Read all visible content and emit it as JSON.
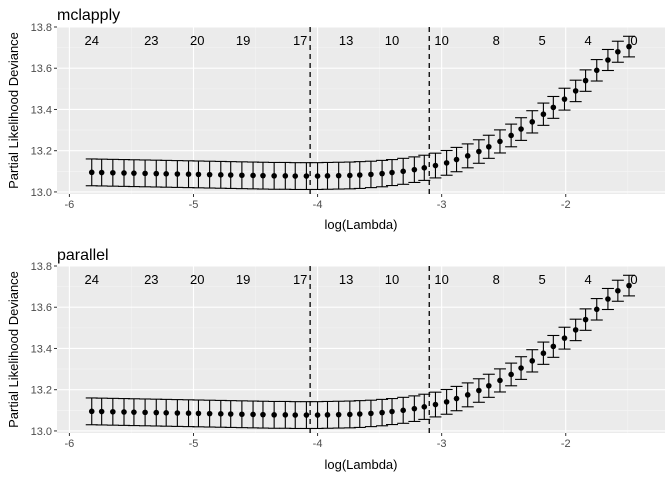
{
  "chart_data": [
    {
      "type": "scatter",
      "title": "mclapply",
      "xlabel": "log(Lambda)",
      "ylabel": "Partial Likelihood Deviance",
      "xlim": [
        -6.1,
        -1.2
      ],
      "ylim": [
        12.99,
        13.8
      ],
      "x_ticks": [
        -6,
        -5,
        -4,
        -3,
        -2
      ],
      "x_tick_labels": [
        "-6",
        "-5",
        "-4",
        "-3",
        "-2"
      ],
      "y_ticks": [
        13.0,
        13.2,
        13.4,
        13.6,
        13.8
      ],
      "y_tick_labels": [
        "13.0",
        "13.2",
        "13.4",
        "13.6",
        "13.8"
      ],
      "grid": true,
      "vlines": [
        -4.06,
        -3.1
      ],
      "top_labels": [
        {
          "x": -5.82,
          "label": "24"
        },
        {
          "x": -5.34,
          "label": "23"
        },
        {
          "x": -4.97,
          "label": "20"
        },
        {
          "x": -4.6,
          "label": "19"
        },
        {
          "x": -4.14,
          "label": "17"
        },
        {
          "x": -3.77,
          "label": "13"
        },
        {
          "x": -3.4,
          "label": "10"
        },
        {
          "x": -3.0,
          "label": "10"
        },
        {
          "x": -2.56,
          "label": "8"
        },
        {
          "x": -2.19,
          "label": "5"
        },
        {
          "x": -1.82,
          "label": "4"
        },
        {
          "x": -1.45,
          "label": "0"
        }
      ],
      "series": [
        {
          "x": [
            -5.82,
            -5.74,
            -5.65,
            -5.56,
            -5.48,
            -5.39,
            -5.3,
            -5.22,
            -5.13,
            -5.04,
            -4.96,
            -4.87,
            -4.78,
            -4.7,
            -4.61,
            -4.52,
            -4.44,
            -4.35,
            -4.26,
            -4.18,
            -4.09,
            -4.0,
            -3.92,
            -3.83,
            -3.74,
            -3.66,
            -3.57,
            -3.48,
            -3.4,
            -3.31,
            -3.22,
            -3.14,
            -3.05,
            -2.96,
            -2.88,
            -2.79,
            -2.7,
            -2.62,
            -2.53,
            -2.44,
            -2.36,
            -2.27,
            -2.18,
            -2.1,
            -2.01,
            -1.92,
            -1.84,
            -1.75,
            -1.66,
            -1.58,
            -1.49
          ],
          "y": [
            13.095,
            13.094,
            13.093,
            13.092,
            13.091,
            13.09,
            13.089,
            13.088,
            13.087,
            13.086,
            13.085,
            13.084,
            13.083,
            13.082,
            13.081,
            13.08,
            13.079,
            13.078,
            13.078,
            13.077,
            13.077,
            13.077,
            13.078,
            13.079,
            13.08,
            13.082,
            13.085,
            13.089,
            13.094,
            13.1,
            13.108,
            13.117,
            13.128,
            13.141,
            13.157,
            13.175,
            13.196,
            13.219,
            13.245,
            13.274,
            13.305,
            13.34,
            13.377,
            13.41,
            13.45,
            13.49,
            13.54,
            13.59,
            13.64,
            13.68,
            13.705
          ],
          "err": [
            0.065,
            0.065,
            0.065,
            0.065,
            0.065,
            0.065,
            0.065,
            0.065,
            0.065,
            0.065,
            0.065,
            0.065,
            0.065,
            0.065,
            0.065,
            0.065,
            0.065,
            0.065,
            0.065,
            0.065,
            0.065,
            0.065,
            0.065,
            0.065,
            0.065,
            0.065,
            0.064,
            0.064,
            0.063,
            0.063,
            0.062,
            0.061,
            0.06,
            0.06,
            0.059,
            0.058,
            0.057,
            0.056,
            0.056,
            0.055,
            0.055,
            0.054,
            0.054,
            0.053,
            0.053,
            0.052,
            0.052,
            0.052,
            0.051,
            0.051,
            0.05
          ]
        }
      ]
    },
    {
      "type": "scatter",
      "title": "parallel",
      "xlabel": "log(Lambda)",
      "ylabel": "Partial Likelihood Deviance",
      "xlim": [
        -6.1,
        -1.2
      ],
      "ylim": [
        12.99,
        13.8
      ],
      "x_ticks": [
        -6,
        -5,
        -4,
        -3,
        -2
      ],
      "x_tick_labels": [
        "-6",
        "-5",
        "-4",
        "-3",
        "-2"
      ],
      "y_ticks": [
        13.0,
        13.2,
        13.4,
        13.6,
        13.8
      ],
      "y_tick_labels": [
        "13.0",
        "13.2",
        "13.4",
        "13.6",
        "13.8"
      ],
      "grid": true,
      "vlines": [
        -4.06,
        -3.1
      ],
      "top_labels": [
        {
          "x": -5.82,
          "label": "24"
        },
        {
          "x": -5.34,
          "label": "23"
        },
        {
          "x": -4.97,
          "label": "20"
        },
        {
          "x": -4.6,
          "label": "19"
        },
        {
          "x": -4.14,
          "label": "17"
        },
        {
          "x": -3.77,
          "label": "13"
        },
        {
          "x": -3.4,
          "label": "10"
        },
        {
          "x": -3.0,
          "label": "10"
        },
        {
          "x": -2.56,
          "label": "8"
        },
        {
          "x": -2.19,
          "label": "5"
        },
        {
          "x": -1.82,
          "label": "4"
        },
        {
          "x": -1.45,
          "label": "0"
        }
      ],
      "series": [
        {
          "x": [
            -5.82,
            -5.74,
            -5.65,
            -5.56,
            -5.48,
            -5.39,
            -5.3,
            -5.22,
            -5.13,
            -5.04,
            -4.96,
            -4.87,
            -4.78,
            -4.7,
            -4.61,
            -4.52,
            -4.44,
            -4.35,
            -4.26,
            -4.18,
            -4.09,
            -4.0,
            -3.92,
            -3.83,
            -3.74,
            -3.66,
            -3.57,
            -3.48,
            -3.4,
            -3.31,
            -3.22,
            -3.14,
            -3.05,
            -2.96,
            -2.88,
            -2.79,
            -2.7,
            -2.62,
            -2.53,
            -2.44,
            -2.36,
            -2.27,
            -2.18,
            -2.1,
            -2.01,
            -1.92,
            -1.84,
            -1.75,
            -1.66,
            -1.58,
            -1.49
          ],
          "y": [
            13.095,
            13.094,
            13.093,
            13.092,
            13.091,
            13.09,
            13.089,
            13.088,
            13.087,
            13.086,
            13.085,
            13.084,
            13.083,
            13.082,
            13.081,
            13.08,
            13.079,
            13.078,
            13.078,
            13.077,
            13.077,
            13.077,
            13.078,
            13.079,
            13.08,
            13.082,
            13.085,
            13.089,
            13.094,
            13.1,
            13.108,
            13.117,
            13.128,
            13.141,
            13.157,
            13.175,
            13.196,
            13.219,
            13.245,
            13.274,
            13.305,
            13.34,
            13.377,
            13.41,
            13.45,
            13.49,
            13.54,
            13.59,
            13.64,
            13.68,
            13.705
          ],
          "err": [
            0.065,
            0.065,
            0.065,
            0.065,
            0.065,
            0.065,
            0.065,
            0.065,
            0.065,
            0.065,
            0.065,
            0.065,
            0.065,
            0.065,
            0.065,
            0.065,
            0.065,
            0.065,
            0.065,
            0.065,
            0.065,
            0.065,
            0.065,
            0.065,
            0.065,
            0.065,
            0.064,
            0.064,
            0.063,
            0.063,
            0.062,
            0.061,
            0.06,
            0.06,
            0.059,
            0.058,
            0.057,
            0.056,
            0.056,
            0.055,
            0.055,
            0.054,
            0.054,
            0.053,
            0.053,
            0.052,
            0.052,
            0.052,
            0.051,
            0.051,
            0.05
          ]
        }
      ]
    }
  ]
}
